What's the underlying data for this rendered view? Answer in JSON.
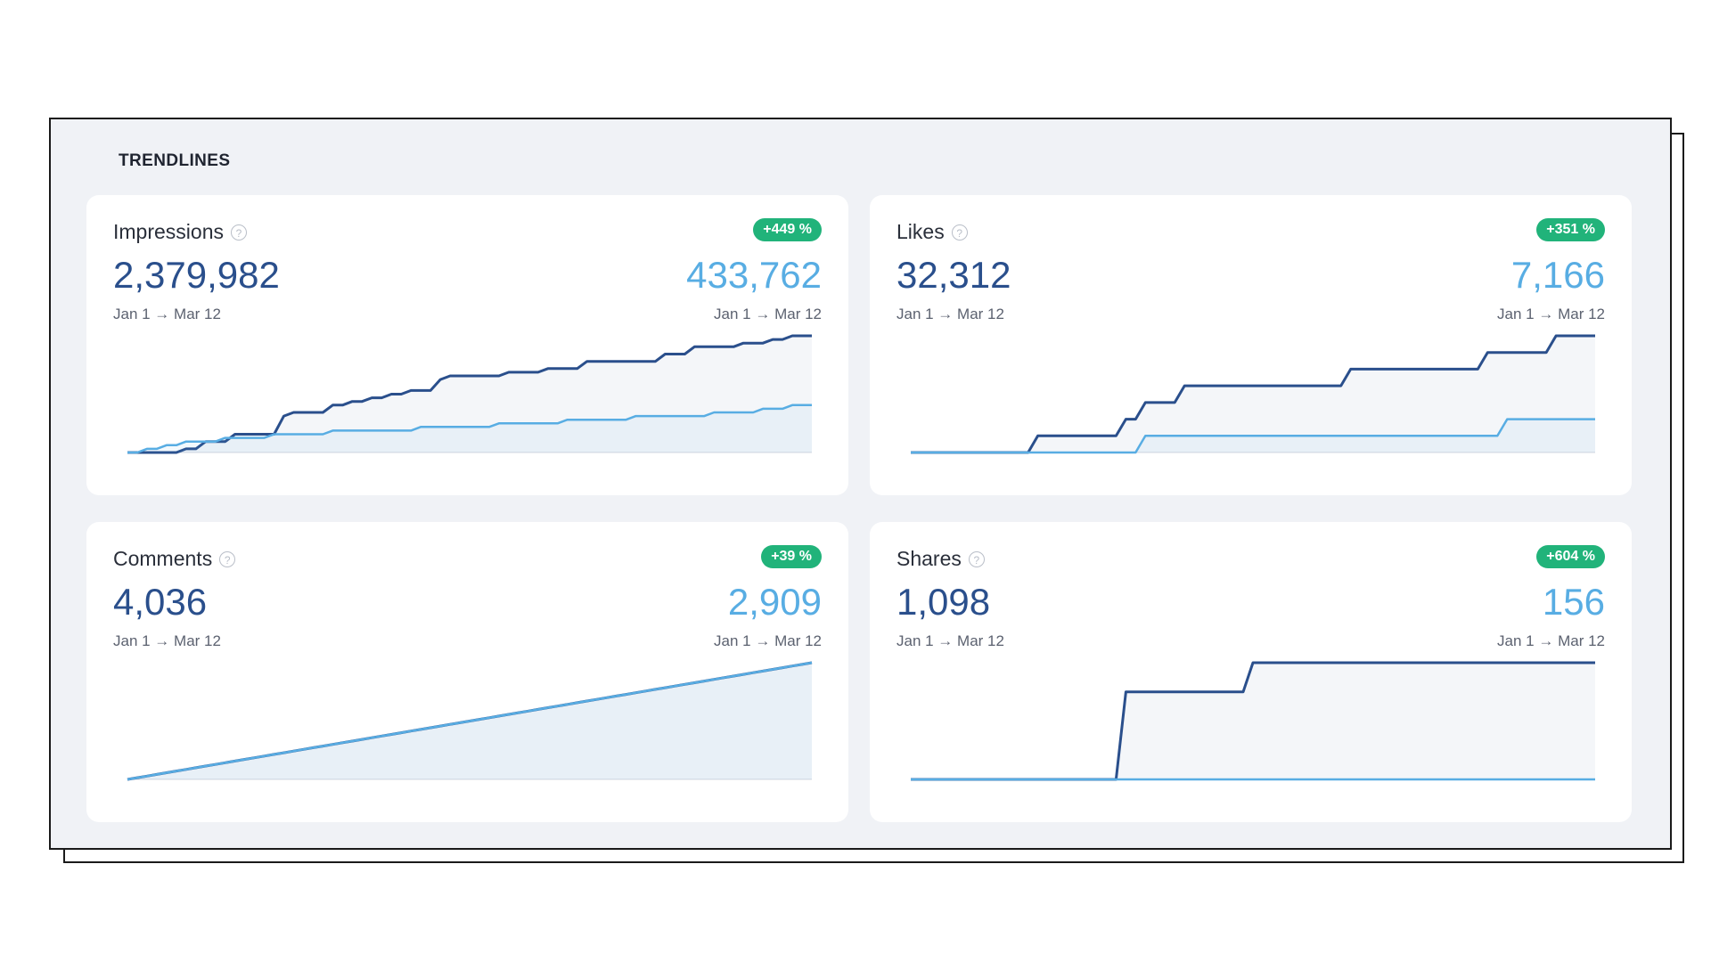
{
  "section": {
    "title": "TRENDLINES"
  },
  "colors": {
    "current": "#2a4f8c",
    "previous": "#58ade3",
    "badge": "#21b37a"
  },
  "cards": [
    {
      "label": "Impressions",
      "badge": "+449 %",
      "current_value": "2,379,982",
      "previous_value": "433,762",
      "date_range_current": "Jan 1 → Mar 12",
      "date_range_previous": "Jan 1 → Mar 12"
    },
    {
      "label": "Likes",
      "badge": "+351 %",
      "current_value": "32,312",
      "previous_value": "7,166",
      "date_range_current": "Jan 1 → Mar 12",
      "date_range_previous": "Jan 1 → Mar 12"
    },
    {
      "label": "Comments",
      "badge": "+39 %",
      "current_value": "4,036",
      "previous_value": "2,909",
      "date_range_current": "Jan 1 → Mar 12",
      "date_range_previous": "Jan 1 → Mar 12"
    },
    {
      "label": "Shares",
      "badge": "+604 %",
      "current_value": "1,098",
      "previous_value": "156",
      "date_range_current": "Jan 1 → Mar 12",
      "date_range_previous": "Jan 1 → Mar 12"
    }
  ],
  "chart_data": [
    {
      "type": "line",
      "series": [
        {
          "values": [
            0,
            0,
            0,
            0,
            0,
            0,
            1,
            1,
            3,
            3,
            3,
            5,
            5,
            5,
            5,
            5,
            10,
            11,
            11,
            11,
            11,
            13,
            13,
            14,
            14,
            15,
            15,
            16,
            16,
            17,
            17,
            17,
            20,
            21,
            21,
            21,
            21,
            21,
            21,
            22,
            22,
            22,
            22,
            23,
            23,
            23,
            23,
            25,
            25,
            25,
            25,
            25,
            25,
            25,
            25,
            27,
            27,
            27,
            29,
            29,
            29,
            29,
            29,
            30,
            30,
            30,
            31,
            31,
            32,
            32,
            32
          ]
        },
        {
          "values": [
            0,
            0,
            1,
            1,
            2,
            2,
            3,
            3,
            3,
            3,
            4,
            4,
            4,
            4,
            4,
            5,
            5,
            5,
            5,
            5,
            5,
            6,
            6,
            6,
            6,
            6,
            6,
            6,
            6,
            6,
            7,
            7,
            7,
            7,
            7,
            7,
            7,
            7,
            8,
            8,
            8,
            8,
            8,
            8,
            8,
            9,
            9,
            9,
            9,
            9,
            9,
            9,
            10,
            10,
            10,
            10,
            10,
            10,
            10,
            10,
            11,
            11,
            11,
            11,
            11,
            12,
            12,
            12,
            13,
            13,
            13
          ]
        }
      ]
    },
    {
      "type": "line",
      "series": [
        {
          "values": [
            0,
            0,
            0,
            0,
            0,
            0,
            0,
            0,
            0,
            0,
            0,
            0,
            0,
            1,
            1,
            1,
            1,
            1,
            1,
            1,
            1,
            1,
            2,
            2,
            3,
            3,
            3,
            3,
            4,
            4,
            4,
            4,
            4,
            4,
            4,
            4,
            4,
            4,
            4,
            4,
            4,
            4,
            4,
            4,
            4,
            5,
            5,
            5,
            5,
            5,
            5,
            5,
            5,
            5,
            5,
            5,
            5,
            5,
            5,
            6,
            6,
            6,
            6,
            6,
            6,
            6,
            7,
            7,
            7,
            7,
            7
          ]
        },
        {
          "values": [
            0,
            0,
            0,
            0,
            0,
            0,
            0,
            0,
            0,
            0,
            0,
            0,
            0,
            0,
            0,
            0,
            0,
            0,
            0,
            0,
            0,
            0,
            0,
            0,
            1,
            1,
            1,
            1,
            1,
            1,
            1,
            1,
            1,
            1,
            1,
            1,
            1,
            1,
            1,
            1,
            1,
            1,
            1,
            1,
            1,
            1,
            1,
            1,
            1,
            1,
            1,
            1,
            1,
            1,
            1,
            1,
            1,
            1,
            1,
            1,
            1,
            2,
            2,
            2,
            2,
            2,
            2,
            2,
            2,
            2,
            2
          ]
        }
      ]
    },
    {
      "type": "line",
      "series": [
        {
          "values": [
            0,
            1,
            2,
            3,
            4,
            5,
            6,
            7,
            8,
            9,
            10,
            11,
            12,
            13,
            14,
            15,
            16,
            17,
            18,
            19,
            20,
            21,
            22,
            23,
            24,
            25,
            26,
            27,
            28,
            29,
            30,
            31,
            32,
            33,
            34,
            35,
            36,
            37,
            38,
            39,
            40,
            41,
            42,
            43,
            44,
            45,
            46,
            47,
            48,
            49,
            50,
            51,
            52,
            53,
            54,
            55,
            56,
            57,
            58,
            59,
            60,
            61,
            62,
            63,
            64,
            65,
            66,
            67,
            68,
            69,
            70
          ]
        },
        {
          "values": [
            0,
            1,
            2,
            3,
            4,
            5,
            6,
            7,
            8,
            9,
            10,
            11,
            12,
            13,
            14,
            15,
            16,
            17,
            18,
            19,
            20,
            21,
            22,
            23,
            24,
            25,
            26,
            27,
            28,
            29,
            30,
            31,
            32,
            33,
            34,
            35,
            36,
            37,
            38,
            39,
            40,
            41,
            42,
            43,
            44,
            45,
            46,
            47,
            48,
            49,
            50,
            51,
            52,
            53,
            54,
            55,
            56,
            57,
            58,
            59,
            60,
            61,
            62,
            63,
            64,
            65,
            66,
            67,
            68,
            69,
            70
          ]
        }
      ]
    },
    {
      "type": "line",
      "series": [
        {
          "values": [
            0,
            0,
            0,
            0,
            0,
            0,
            0,
            0,
            0,
            0,
            0,
            0,
            0,
            0,
            0,
            0,
            0,
            0,
            0,
            0,
            0,
            0,
            3,
            3,
            3,
            3,
            3,
            3,
            3,
            3,
            3,
            3,
            3,
            3,
            3,
            4,
            4,
            4,
            4,
            4,
            4,
            4,
            4,
            4,
            4,
            4,
            4,
            4,
            4,
            4,
            4,
            4,
            4,
            4,
            4,
            4,
            4,
            4,
            4,
            4,
            4,
            4,
            4,
            4,
            4,
            4,
            4,
            4,
            4,
            4,
            4
          ]
        },
        {
          "values": [
            0,
            0,
            0,
            0,
            0,
            0,
            0,
            0,
            0,
            0,
            0,
            0,
            0,
            0,
            0,
            0,
            0,
            0,
            0,
            0,
            0,
            0,
            0,
            0,
            0,
            0,
            0,
            0,
            0,
            0,
            0,
            0,
            0,
            0,
            0,
            0,
            0,
            0,
            0,
            0,
            0,
            0,
            0,
            0,
            0,
            0,
            0,
            0,
            0,
            0,
            0,
            0,
            0,
            0,
            0,
            0,
            0,
            0,
            0,
            0,
            0,
            0,
            0,
            0,
            0,
            0,
            0,
            0,
            0,
            0,
            0
          ]
        }
      ]
    }
  ]
}
